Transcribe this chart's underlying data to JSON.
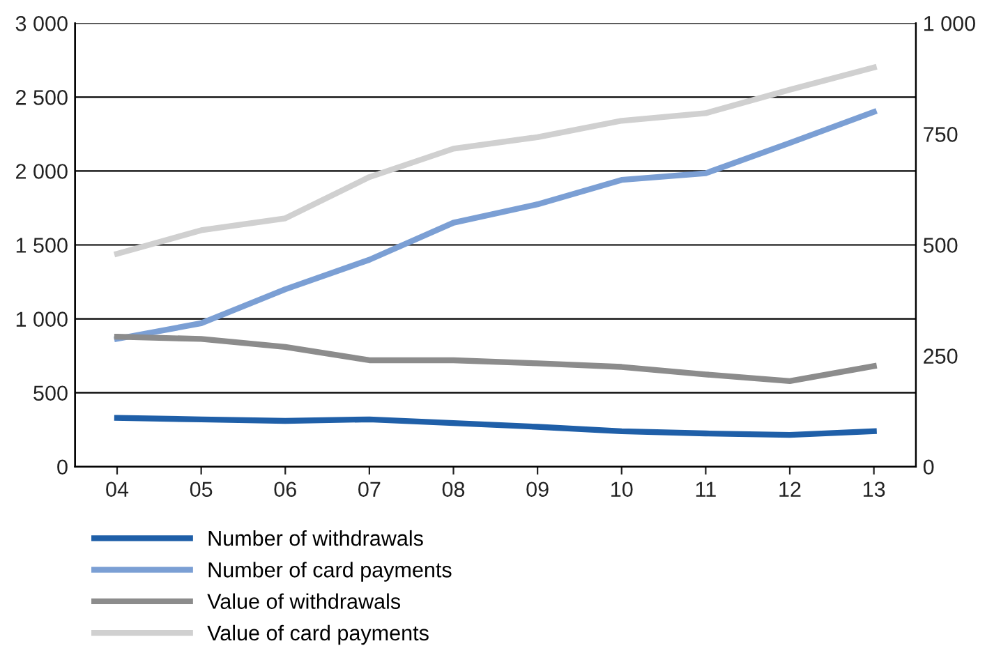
{
  "chart_data": {
    "type": "line",
    "categories": [
      "04",
      "05",
      "06",
      "07",
      "08",
      "09",
      "10",
      "11",
      "12",
      "13"
    ],
    "series": [
      {
        "name": "Number of withdrawals",
        "color": "#1f5fa8",
        "values": [
          330,
          320,
          310,
          320,
          295,
          270,
          240,
          225,
          215,
          240
        ]
      },
      {
        "name": "Number of card payments",
        "color": "#7b9fd4",
        "values": [
          865,
          970,
          1200,
          1400,
          1650,
          1775,
          1940,
          1985,
          2190,
          2400
        ]
      },
      {
        "name": "Value of withdrawals",
        "color": "#8c8c8c",
        "axis": "y2",
        "values": [
          293,
          288,
          270,
          240,
          240,
          233,
          225,
          208,
          193,
          227
        ]
      },
      {
        "name": "Value of card payments",
        "color": "#d0d0d0",
        "axis": "y2",
        "values": [
          480,
          533,
          560,
          653,
          717,
          743,
          780,
          797,
          850,
          900
        ]
      }
    ],
    "ylim": [
      0,
      3000
    ],
    "yticks": [
      0,
      500,
      {
        "value": 1000,
        "label": "1 000"
      },
      {
        "value": 1500,
        "label": "1 500"
      },
      {
        "value": 2000,
        "label": "2 000"
      },
      {
        "value": 2500,
        "label": "2 500"
      },
      {
        "value": 3000,
        "label": "3 000"
      }
    ],
    "y2lim": [
      0,
      1000
    ],
    "y2ticks": [
      0,
      250,
      500,
      750,
      {
        "value": 1000,
        "label": "1 000"
      }
    ],
    "grid": "y",
    "legend": "bottom left",
    "marker": "none",
    "line_style": "solid"
  }
}
